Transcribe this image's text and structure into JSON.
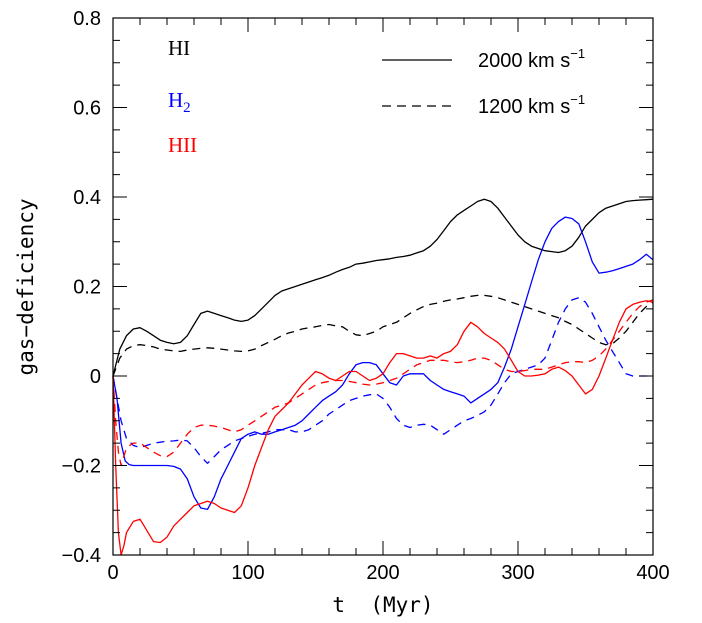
{
  "chart_data": {
    "type": "line",
    "title": "",
    "xlabel": "t  (Myr)",
    "ylabel": "gas−deficiency",
    "xlim": [
      0,
      400
    ],
    "ylim": [
      -0.4,
      0.8
    ],
    "xticks": [
      0,
      100,
      200,
      300,
      400
    ],
    "xtick_labels": [
      "0",
      "100",
      "200",
      "300",
      "400"
    ],
    "yticks": [
      -0.4,
      -0.2,
      0,
      0.2,
      0.4,
      0.6,
      0.8
    ],
    "ytick_labels": [
      "−0.4",
      "−0.2",
      "0",
      "0.2",
      "0.4",
      "0.6",
      "0.8"
    ],
    "grid": false,
    "species_legend": [
      {
        "label": "HI",
        "sub": "",
        "color": "#000000"
      },
      {
        "label": "H",
        "sub": "2",
        "color": "#0000ff"
      },
      {
        "label": "HII",
        "sub": "",
        "color": "#ff0000"
      }
    ],
    "style_legend": [
      {
        "label": "2000  km  s",
        "sup": "−1",
        "dash": "solid"
      },
      {
        "label": "1200  km  s",
        "sup": "−1",
        "dash": "dashed"
      }
    ],
    "series": [
      {
        "species": "HI",
        "velocity": "2000",
        "color": "#000000",
        "dash": "solid",
        "x": [
          0,
          5,
          10,
          15,
          20,
          25,
          30,
          35,
          40,
          45,
          50,
          55,
          60,
          65,
          70,
          75,
          80,
          85,
          90,
          95,
          100,
          105,
          110,
          115,
          120,
          125,
          130,
          135,
          140,
          145,
          150,
          155,
          160,
          165,
          170,
          175,
          180,
          185,
          190,
          195,
          200,
          205,
          210,
          215,
          220,
          225,
          230,
          235,
          240,
          245,
          250,
          255,
          260,
          265,
          270,
          275,
          280,
          285,
          290,
          295,
          300,
          305,
          310,
          315,
          320,
          325,
          330,
          335,
          340,
          345,
          350,
          355,
          360,
          365,
          370,
          375,
          380,
          385,
          390,
          395,
          400
        ],
        "y": [
          0,
          0.06,
          0.09,
          0.105,
          0.108,
          0.1,
          0.09,
          0.08,
          0.075,
          0.072,
          0.075,
          0.09,
          0.115,
          0.14,
          0.145,
          0.14,
          0.135,
          0.13,
          0.125,
          0.122,
          0.125,
          0.135,
          0.15,
          0.165,
          0.18,
          0.19,
          0.195,
          0.2,
          0.205,
          0.21,
          0.215,
          0.22,
          0.225,
          0.232,
          0.238,
          0.243,
          0.25,
          0.252,
          0.255,
          0.258,
          0.26,
          0.262,
          0.265,
          0.267,
          0.27,
          0.275,
          0.28,
          0.29,
          0.305,
          0.325,
          0.345,
          0.36,
          0.37,
          0.38,
          0.39,
          0.395,
          0.39,
          0.375,
          0.355,
          0.335,
          0.315,
          0.3,
          0.29,
          0.285,
          0.28,
          0.278,
          0.276,
          0.28,
          0.29,
          0.31,
          0.335,
          0.35,
          0.365,
          0.375,
          0.38,
          0.385,
          0.39,
          0.392,
          0.393,
          0.394,
          0.395
        ]
      },
      {
        "species": "HI",
        "velocity": "1200",
        "color": "#000000",
        "dash": "dashed",
        "x": [
          0,
          5,
          10,
          15,
          20,
          25,
          30,
          35,
          40,
          45,
          50,
          55,
          60,
          65,
          70,
          75,
          80,
          85,
          90,
          95,
          100,
          105,
          110,
          115,
          120,
          125,
          130,
          135,
          140,
          145,
          150,
          155,
          160,
          165,
          170,
          175,
          180,
          185,
          190,
          195,
          200,
          205,
          210,
          215,
          220,
          225,
          230,
          235,
          240,
          245,
          250,
          255,
          260,
          265,
          270,
          275,
          280,
          285,
          290,
          295,
          300,
          305,
          310,
          315,
          320,
          325,
          330,
          335,
          340,
          345,
          350,
          355,
          360,
          365,
          370,
          375,
          380,
          385,
          390,
          395,
          400
        ],
        "y": [
          0,
          0.04,
          0.06,
          0.068,
          0.07,
          0.068,
          0.065,
          0.06,
          0.058,
          0.056,
          0.055,
          0.058,
          0.06,
          0.062,
          0.063,
          0.062,
          0.06,
          0.058,
          0.056,
          0.055,
          0.056,
          0.06,
          0.068,
          0.075,
          0.082,
          0.09,
          0.096,
          0.1,
          0.105,
          0.108,
          0.11,
          0.113,
          0.115,
          0.112,
          0.11,
          0.1,
          0.092,
          0.09,
          0.095,
          0.1,
          0.11,
          0.115,
          0.12,
          0.13,
          0.14,
          0.148,
          0.155,
          0.16,
          0.163,
          0.167,
          0.17,
          0.172,
          0.175,
          0.178,
          0.18,
          0.18,
          0.178,
          0.175,
          0.17,
          0.165,
          0.16,
          0.155,
          0.15,
          0.145,
          0.14,
          0.135,
          0.13,
          0.122,
          0.115,
          0.105,
          0.095,
          0.085,
          0.075,
          0.07,
          0.072,
          0.085,
          0.1,
          0.12,
          0.14,
          0.155,
          0.165
        ]
      },
      {
        "species": "H2",
        "velocity": "2000",
        "color": "#0000ff",
        "dash": "solid",
        "x": [
          0,
          3,
          6,
          9,
          12,
          15,
          20,
          25,
          30,
          35,
          40,
          45,
          50,
          55,
          60,
          65,
          70,
          75,
          80,
          85,
          90,
          95,
          100,
          105,
          110,
          115,
          120,
          125,
          130,
          135,
          140,
          145,
          150,
          155,
          160,
          165,
          170,
          175,
          180,
          185,
          190,
          195,
          200,
          205,
          210,
          215,
          220,
          225,
          230,
          235,
          240,
          245,
          250,
          255,
          260,
          265,
          270,
          275,
          280,
          285,
          290,
          295,
          300,
          305,
          310,
          315,
          320,
          325,
          330,
          335,
          340,
          345,
          350,
          355,
          360,
          365,
          370,
          375,
          380,
          385,
          390,
          395,
          400
        ],
        "y": [
          0,
          -0.05,
          -0.15,
          -0.19,
          -0.198,
          -0.2,
          -0.2,
          -0.2,
          -0.2,
          -0.2,
          -0.2,
          -0.202,
          -0.208,
          -0.23,
          -0.27,
          -0.295,
          -0.298,
          -0.27,
          -0.23,
          -0.2,
          -0.17,
          -0.14,
          -0.13,
          -0.125,
          -0.13,
          -0.13,
          -0.125,
          -0.12,
          -0.115,
          -0.11,
          -0.1,
          -0.085,
          -0.07,
          -0.055,
          -0.045,
          -0.035,
          -0.02,
          0.005,
          0.025,
          0.03,
          0.03,
          0.025,
          0.005,
          -0.015,
          -0.02,
          0.0,
          0.005,
          0.005,
          0.005,
          -0.01,
          -0.02,
          -0.03,
          -0.035,
          -0.04,
          -0.045,
          -0.06,
          -0.05,
          -0.04,
          -0.03,
          -0.015,
          0.02,
          0.06,
          0.11,
          0.16,
          0.21,
          0.26,
          0.3,
          0.33,
          0.345,
          0.355,
          0.352,
          0.34,
          0.3,
          0.255,
          0.23,
          0.232,
          0.235,
          0.24,
          0.245,
          0.25,
          0.26,
          0.272,
          0.26
        ]
      },
      {
        "species": "H2",
        "velocity": "1200",
        "color": "#0000ff",
        "dash": "dashed",
        "x": [
          0,
          3,
          6,
          10,
          15,
          20,
          25,
          30,
          35,
          40,
          45,
          50,
          55,
          60,
          65,
          70,
          75,
          80,
          85,
          90,
          95,
          100,
          105,
          110,
          115,
          120,
          125,
          130,
          135,
          140,
          145,
          150,
          155,
          160,
          165,
          170,
          175,
          180,
          185,
          190,
          195,
          200,
          205,
          210,
          215,
          220,
          225,
          230,
          235,
          240,
          245,
          250,
          255,
          260,
          265,
          270,
          275,
          280,
          285,
          290,
          295,
          300,
          305,
          310,
          315,
          320,
          325,
          330,
          335,
          340,
          345,
          350,
          355,
          360,
          365,
          370,
          375,
          380,
          385,
          390,
          395,
          400
        ],
        "y": [
          0,
          -0.05,
          -0.1,
          -0.14,
          -0.155,
          -0.16,
          -0.155,
          -0.15,
          -0.148,
          -0.146,
          -0.145,
          -0.143,
          -0.145,
          -0.16,
          -0.18,
          -0.195,
          -0.18,
          -0.165,
          -0.155,
          -0.145,
          -0.14,
          -0.135,
          -0.13,
          -0.128,
          -0.125,
          -0.12,
          -0.12,
          -0.12,
          -0.125,
          -0.125,
          -0.12,
          -0.11,
          -0.1,
          -0.085,
          -0.075,
          -0.065,
          -0.055,
          -0.05,
          -0.045,
          -0.042,
          -0.04,
          -0.05,
          -0.07,
          -0.095,
          -0.11,
          -0.115,
          -0.11,
          -0.108,
          -0.11,
          -0.12,
          -0.13,
          -0.12,
          -0.11,
          -0.1,
          -0.095,
          -0.088,
          -0.08,
          -0.065,
          -0.04,
          -0.015,
          0.005,
          0.01,
          0.015,
          0.02,
          0.025,
          0.04,
          0.08,
          0.12,
          0.15,
          0.17,
          0.175,
          0.165,
          0.14,
          0.11,
          0.08,
          0.055,
          0.03,
          0.005,
          0.0,
          0.0,
          0.0,
          0.0
        ]
      },
      {
        "species": "HII",
        "velocity": "2000",
        "color": "#ff0000",
        "dash": "solid",
        "x": [
          0,
          2,
          4,
          6,
          8,
          10,
          15,
          20,
          25,
          30,
          35,
          40,
          45,
          50,
          55,
          60,
          65,
          70,
          75,
          80,
          85,
          90,
          95,
          100,
          105,
          110,
          115,
          120,
          125,
          130,
          135,
          140,
          145,
          150,
          155,
          160,
          165,
          170,
          175,
          180,
          185,
          190,
          195,
          200,
          205,
          210,
          215,
          220,
          225,
          230,
          235,
          240,
          245,
          250,
          255,
          260,
          265,
          270,
          275,
          280,
          285,
          290,
          295,
          300,
          305,
          310,
          315,
          320,
          325,
          330,
          335,
          340,
          345,
          350,
          355,
          360,
          365,
          370,
          375,
          380,
          385,
          390,
          395,
          400
        ],
        "y": [
          0,
          -0.2,
          -0.35,
          -0.4,
          -0.38,
          -0.35,
          -0.325,
          -0.32,
          -0.345,
          -0.37,
          -0.372,
          -0.36,
          -0.335,
          -0.32,
          -0.305,
          -0.29,
          -0.285,
          -0.28,
          -0.285,
          -0.295,
          -0.3,
          -0.305,
          -0.29,
          -0.25,
          -0.2,
          -0.16,
          -0.12,
          -0.09,
          -0.075,
          -0.06,
          -0.04,
          -0.02,
          -0.005,
          0.01,
          0.005,
          -0.005,
          -0.01,
          0.0,
          0.01,
          0.01,
          0.0,
          -0.01,
          -0.005,
          0.005,
          0.03,
          0.05,
          0.05,
          0.045,
          0.04,
          0.04,
          0.045,
          0.04,
          0.05,
          0.055,
          0.07,
          0.1,
          0.12,
          0.11,
          0.095,
          0.085,
          0.075,
          0.06,
          0.035,
          0.01,
          0.0,
          0.0,
          0.002,
          0.005,
          0.015,
          0.02,
          0.012,
          0.0,
          -0.02,
          -0.04,
          -0.03,
          0.0,
          0.04,
          0.08,
          0.12,
          0.15,
          0.16,
          0.165,
          0.168,
          0.165
        ]
      },
      {
        "species": "HII",
        "velocity": "1200",
        "color": "#ff0000",
        "dash": "dashed",
        "x": [
          0,
          2,
          4,
          6,
          10,
          15,
          20,
          25,
          30,
          35,
          40,
          45,
          50,
          55,
          60,
          65,
          70,
          75,
          80,
          85,
          90,
          95,
          100,
          105,
          110,
          115,
          120,
          125,
          130,
          135,
          140,
          145,
          150,
          155,
          160,
          165,
          170,
          175,
          180,
          185,
          190,
          195,
          200,
          205,
          210,
          215,
          220,
          225,
          230,
          235,
          240,
          245,
          250,
          255,
          260,
          265,
          270,
          275,
          280,
          285,
          290,
          295,
          300,
          305,
          310,
          315,
          320,
          325,
          330,
          335,
          340,
          345,
          350,
          355,
          360,
          365,
          370,
          375,
          380,
          385,
          390,
          395,
          400
        ],
        "y": [
          0,
          -0.1,
          -0.17,
          -0.2,
          -0.16,
          -0.15,
          -0.15,
          -0.16,
          -0.17,
          -0.178,
          -0.18,
          -0.17,
          -0.15,
          -0.13,
          -0.115,
          -0.11,
          -0.11,
          -0.112,
          -0.115,
          -0.12,
          -0.125,
          -0.12,
          -0.11,
          -0.1,
          -0.09,
          -0.08,
          -0.07,
          -0.065,
          -0.06,
          -0.05,
          -0.04,
          -0.03,
          -0.02,
          -0.015,
          -0.012,
          -0.01,
          -0.01,
          -0.012,
          -0.015,
          -0.018,
          -0.02,
          -0.018,
          -0.015,
          -0.01,
          -0.005,
          0.005,
          0.015,
          0.025,
          0.03,
          0.035,
          0.035,
          0.035,
          0.032,
          0.03,
          0.032,
          0.035,
          0.04,
          0.04,
          0.035,
          0.025,
          0.015,
          0.01,
          0.01,
          0.012,
          0.015,
          0.015,
          0.015,
          0.02,
          0.025,
          0.03,
          0.032,
          0.032,
          0.03,
          0.035,
          0.045,
          0.06,
          0.08,
          0.1,
          0.12,
          0.14,
          0.155,
          0.165,
          0.17
        ]
      }
    ]
  }
}
